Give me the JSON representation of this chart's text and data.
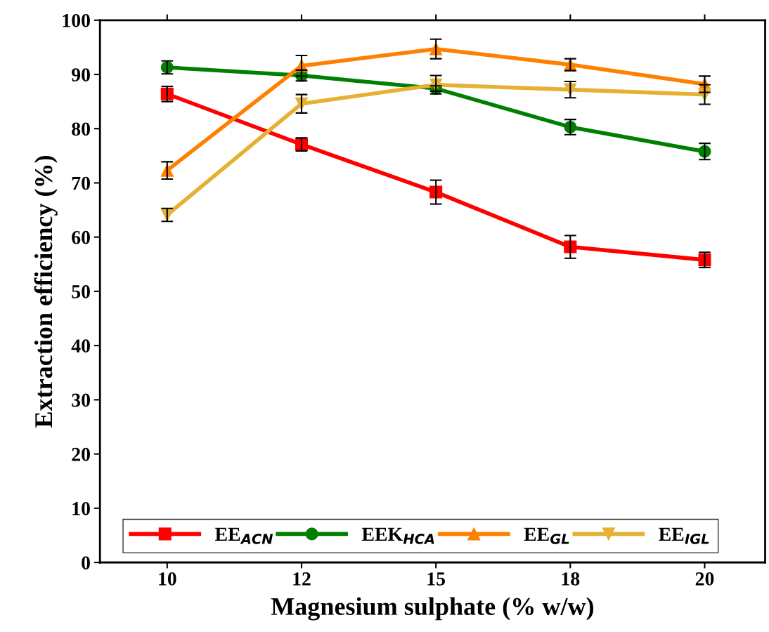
{
  "chart_data": {
    "type": "line",
    "xlabel": "Magnesium sulphate (% w/w)",
    "ylabel": "Extraction efficiency (%)",
    "categories": [
      "10",
      "12",
      "15",
      "18",
      "20"
    ],
    "ylim": [
      0,
      100
    ],
    "yticks": [
      0,
      10,
      20,
      30,
      40,
      50,
      60,
      70,
      80,
      90,
      100
    ],
    "grid": false,
    "legend": "bottom",
    "line_style": "solid",
    "series": [
      {
        "name": "EE$_{ACN}$",
        "color": "#ff0000",
        "marker": "square",
        "values": [
          86.4,
          77.1,
          68.3,
          58.2,
          55.8
        ],
        "errors": [
          1.4,
          1.2,
          2.2,
          2.1,
          1.4
        ]
      },
      {
        "name": "EEK$_{HCA}$",
        "color": "#007f00",
        "marker": "circle",
        "values": [
          91.3,
          89.8,
          87.4,
          80.3,
          75.8
        ],
        "errors": [
          1.2,
          1.0,
          0.5,
          1.4,
          1.5
        ]
      },
      {
        "name": "EE$_{GL}$",
        "color": "#ff8000",
        "marker": "triangle",
        "values": [
          72.3,
          91.6,
          94.7,
          91.8,
          88.2
        ],
        "errors": [
          1.6,
          1.9,
          1.8,
          1.1,
          1.5
        ]
      },
      {
        "name": "EE$_{IGL}$",
        "color": "#e6b033",
        "marker": "triangle_down",
        "values": [
          64.1,
          84.6,
          88.1,
          87.2,
          86.3
        ],
        "errors": [
          1.2,
          1.7,
          1.7,
          1.5,
          1.8
        ]
      }
    ]
  }
}
